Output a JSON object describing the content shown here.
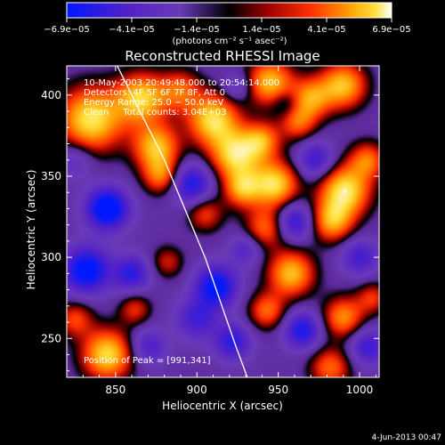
{
  "chart_data": {
    "type": "heatmap",
    "title": "Reconstructed RHESSI Image",
    "xlabel": "Heliocentric X (arcsec)",
    "ylabel": "Heliocentric Y (arcsec)",
    "xlim": [
      820,
      1012
    ],
    "ylim": [
      226,
      418
    ],
    "x_ticks": [
      850,
      900,
      950,
      1000
    ],
    "y_ticks": [
      250,
      300,
      350,
      400
    ],
    "colorbar": {
      "min": -6.9e-05,
      "max": 6.9e-05,
      "tick_labels": [
        "−6.9e−05",
        "−4.1e−05",
        "−1.4e−05",
        "1.4e−05",
        "4.1e−05",
        "6.9e−05"
      ],
      "units_label": "(photons cm⁻² s⁻¹ asec⁻²)",
      "colormap": "rhessi-blue-purple-black-red-yellow-white"
    },
    "annotations": {
      "time_range": "10‑May‑2003 20:49:48.000 to 20:54:14.000",
      "detectors": "Detectors: 4F 5F 6F 7F 8F, Att 0",
      "energy": "Energy Range: 25.0 − 50.0 keV",
      "clean": "Clean     Total counts: 3.04E+03",
      "peak": "Position of Peak = [991,341]"
    },
    "peak": {
      "x": 991,
      "y": 341
    },
    "limb_curve": [
      [
        851,
        418
      ],
      [
        880,
        360
      ],
      [
        905,
        300
      ],
      [
        924,
        245
      ],
      [
        931,
        226
      ]
    ],
    "footer_date": "4-Jun-2013 00:47",
    "blobs": [
      {
        "x": 835,
        "y": 385,
        "v": 1.0,
        "r": 14
      },
      {
        "x": 866,
        "y": 398,
        "v": 0.9,
        "r": 11
      },
      {
        "x": 890,
        "y": 403,
        "v": 0.55,
        "r": 9
      },
      {
        "x": 910,
        "y": 385,
        "v": 0.95,
        "r": 11
      },
      {
        "x": 924,
        "y": 363,
        "v": 0.95,
        "r": 11
      },
      {
        "x": 928,
        "y": 342,
        "v": 0.7,
        "r": 8
      },
      {
        "x": 945,
        "y": 408,
        "v": 0.85,
        "r": 10
      },
      {
        "x": 970,
        "y": 398,
        "v": 0.7,
        "r": 9
      },
      {
        "x": 990,
        "y": 406,
        "v": 0.85,
        "r": 10
      },
      {
        "x": 962,
        "y": 383,
        "v": 0.55,
        "r": 8
      },
      {
        "x": 940,
        "y": 372,
        "v": 0.65,
        "r": 8
      },
      {
        "x": 875,
        "y": 368,
        "v": 0.85,
        "r": 10
      },
      {
        "x": 878,
        "y": 350,
        "v": 0.6,
        "r": 8
      },
      {
        "x": 948,
        "y": 345,
        "v": 0.95,
        "r": 10
      },
      {
        "x": 991,
        "y": 341,
        "v": 1.0,
        "r": 11
      },
      {
        "x": 983,
        "y": 322,
        "v": 0.75,
        "r": 9
      },
      {
        "x": 1005,
        "y": 360,
        "v": 0.6,
        "r": 8
      },
      {
        "x": 942,
        "y": 318,
        "v": 0.6,
        "r": 9
      },
      {
        "x": 958,
        "y": 290,
        "v": 0.85,
        "r": 10
      },
      {
        "x": 943,
        "y": 267,
        "v": 0.6,
        "r": 8
      },
      {
        "x": 905,
        "y": 327,
        "v": 0.5,
        "r": 8
      },
      {
        "x": 990,
        "y": 263,
        "v": 0.7,
        "r": 9
      },
      {
        "x": 982,
        "y": 232,
        "v": 0.6,
        "r": 9
      },
      {
        "x": 1008,
        "y": 275,
        "v": 0.45,
        "r": 7
      },
      {
        "x": 845,
        "y": 240,
        "v": 0.95,
        "r": 11
      },
      {
        "x": 862,
        "y": 268,
        "v": 0.45,
        "r": 7
      },
      {
        "x": 825,
        "y": 262,
        "v": 0.5,
        "r": 8
      },
      {
        "x": 882,
        "y": 297,
        "v": 0.4,
        "r": 7
      },
      {
        "x": 845,
        "y": 330,
        "v": -1.0,
        "r": 9
      },
      {
        "x": 832,
        "y": 292,
        "v": -0.9,
        "r": 10
      },
      {
        "x": 860,
        "y": 290,
        "v": -0.6,
        "r": 8
      },
      {
        "x": 897,
        "y": 345,
        "v": -0.7,
        "r": 9
      },
      {
        "x": 912,
        "y": 282,
        "v": -0.85,
        "r": 9
      },
      {
        "x": 922,
        "y": 248,
        "v": -0.6,
        "r": 8
      },
      {
        "x": 930,
        "y": 305,
        "v": -0.4,
        "r": 7
      },
      {
        "x": 960,
        "y": 322,
        "v": -0.65,
        "r": 8
      },
      {
        "x": 973,
        "y": 360,
        "v": -0.55,
        "r": 8
      },
      {
        "x": 1000,
        "y": 300,
        "v": -0.5,
        "r": 8
      },
      {
        "x": 965,
        "y": 255,
        "v": -0.7,
        "r": 8
      },
      {
        "x": 1005,
        "y": 245,
        "v": -0.55,
        "r": 8
      },
      {
        "x": 900,
        "y": 262,
        "v": -0.5,
        "r": 9
      },
      {
        "x": 870,
        "y": 245,
        "v": -0.45,
        "r": 8
      },
      {
        "x": 825,
        "y": 360,
        "v": -0.35,
        "r": 8
      },
      {
        "x": 955,
        "y": 395,
        "v": -0.3,
        "r": 6
      },
      {
        "x": 925,
        "y": 405,
        "v": -0.35,
        "r": 6
      }
    ]
  }
}
